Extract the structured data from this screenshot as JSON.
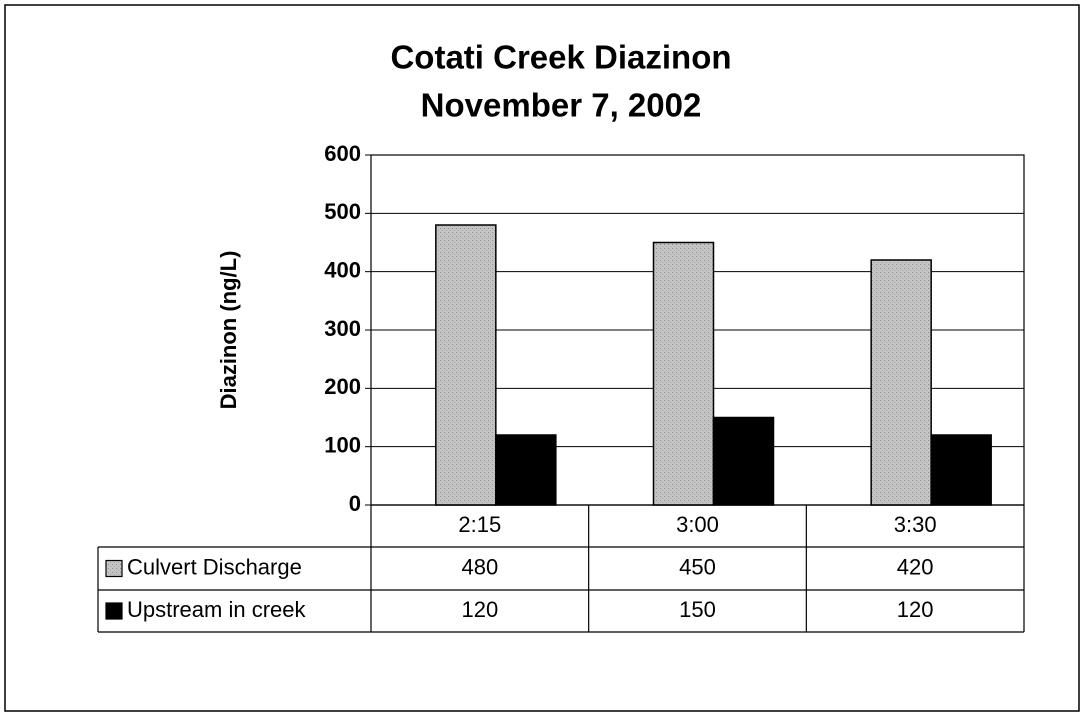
{
  "chart_data": {
    "type": "bar",
    "title": "Cotati Creek Diazinon",
    "subtitle": "November 7, 2002",
    "ylabel": "Diazinon (ng/L)",
    "categories": [
      "2:15",
      "3:00",
      "3:30"
    ],
    "series": [
      {
        "name": "Culvert Discharge",
        "color": "#c4c4c4",
        "values": [
          480,
          450,
          420
        ]
      },
      {
        "name": "Upstream in creek",
        "color": "#000000",
        "values": [
          120,
          150,
          120
        ]
      }
    ],
    "ylim": [
      0,
      600
    ],
    "yticks": [
      0,
      100,
      200,
      300,
      400,
      500,
      600
    ],
    "grid": true
  }
}
